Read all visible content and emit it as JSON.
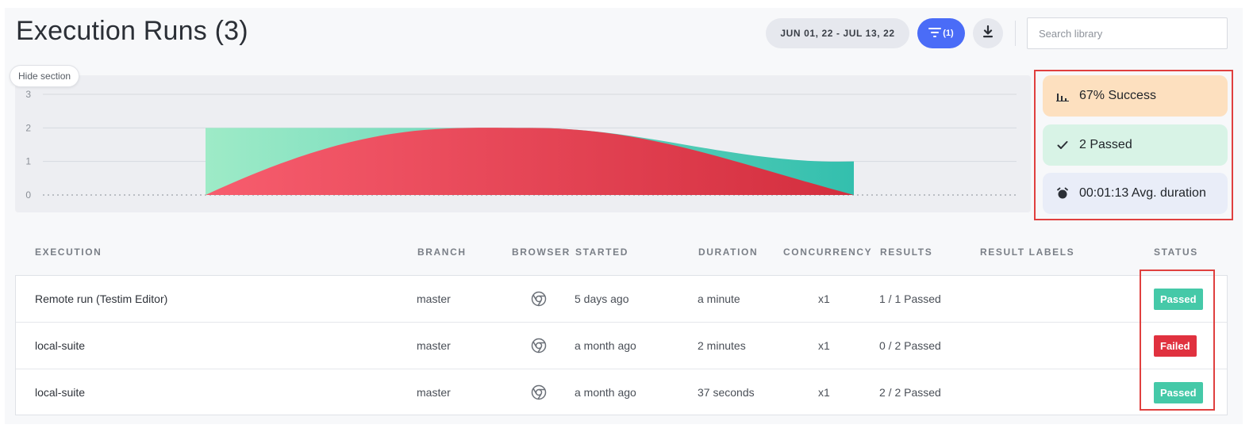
{
  "header": {
    "title": "Execution Runs (3)",
    "date_range": "JUN 01, 22 - JUL 13, 22",
    "filter_count": "(1)",
    "search_placeholder": "Search library"
  },
  "chart": {
    "hide_label": "Hide section",
    "y_ticks": [
      "3",
      "2",
      "1",
      "0"
    ]
  },
  "chart_data": {
    "type": "area",
    "y_ticks": [
      0,
      1,
      2,
      3
    ],
    "ylim": [
      0,
      3
    ],
    "series": [
      {
        "values": [
          2,
          2,
          1
        ],
        "color": "#45c9a8"
      },
      {
        "values": [
          0,
          2,
          0
        ],
        "color": "#e4434f"
      }
    ]
  },
  "stats": {
    "success": "67% Success",
    "passed": "2 Passed",
    "duration": "00:01:13 Avg. duration",
    "colors": {
      "success": "#fde0bf",
      "passed": "#d8f3e6",
      "duration": "#e9edf8"
    }
  },
  "table": {
    "headers": {
      "execution": "EXECUTION",
      "branch": "BRANCH",
      "browser": "BROWSER",
      "started": "STARTED",
      "duration": "DURATION",
      "concurrency": "CONCURRENCY",
      "results": "RESULTS",
      "result_labels": "RESULT LABELS",
      "status": "STATUS"
    },
    "rows": [
      {
        "execution": "Remote run (Testim Editor)",
        "branch": "master",
        "browser": "chrome-icon",
        "started": "5 days ago",
        "duration": "a minute",
        "concurrency": "x1",
        "results": "1 / 1 Passed",
        "status": "Passed",
        "status_color": "#45c9a8"
      },
      {
        "execution": "local-suite",
        "branch": "master",
        "browser": "chrome-icon",
        "started": "a month ago",
        "duration": "2 minutes",
        "concurrency": "x1",
        "results": "0 / 2 Passed",
        "status": "Failed",
        "status_color": "#e0313f"
      },
      {
        "execution": "local-suite",
        "branch": "master",
        "browser": "chrome-icon",
        "started": "a month ago",
        "duration": "37 seconds",
        "concurrency": "x1",
        "results": "2 / 2 Passed",
        "status": "Passed",
        "status_color": "#45c9a8"
      }
    ]
  }
}
